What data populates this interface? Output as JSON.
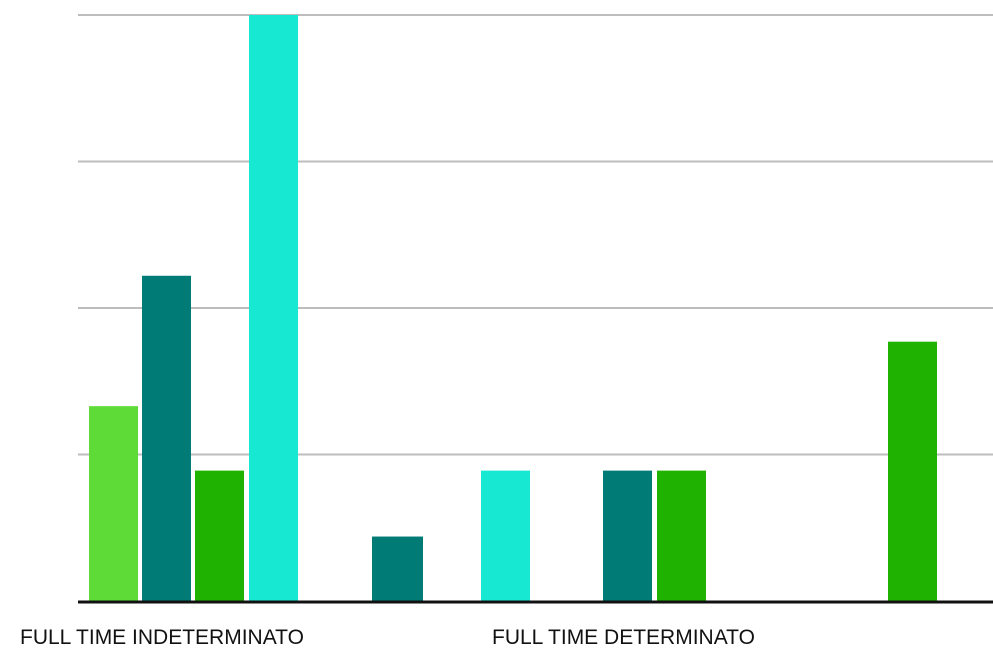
{
  "chart_data": {
    "type": "bar",
    "categories": [
      "FULL TIME INDETERMINATO",
      "FULL TIME DETERMINATO"
    ],
    "ylim": [
      0,
      4
    ],
    "grid": true,
    "series": [
      {
        "color": "#5fdb38",
        "values": [
          1.33,
          0
        ]
      },
      {
        "color": "#007b75",
        "values": [
          2.22,
          0.44
        ]
      },
      {
        "color": "#20b200",
        "values": [
          0.89,
          0
        ]
      },
      {
        "color": "#17e8d1",
        "values": [
          4.0,
          0.89
        ]
      },
      {
        "color": "#007b75",
        "values": [
          0,
          0.89
        ]
      },
      {
        "color": "#20b200",
        "values": [
          0,
          0.89
        ]
      },
      {
        "color": "#20b200",
        "values": [
          0,
          1.77
        ]
      }
    ]
  }
}
